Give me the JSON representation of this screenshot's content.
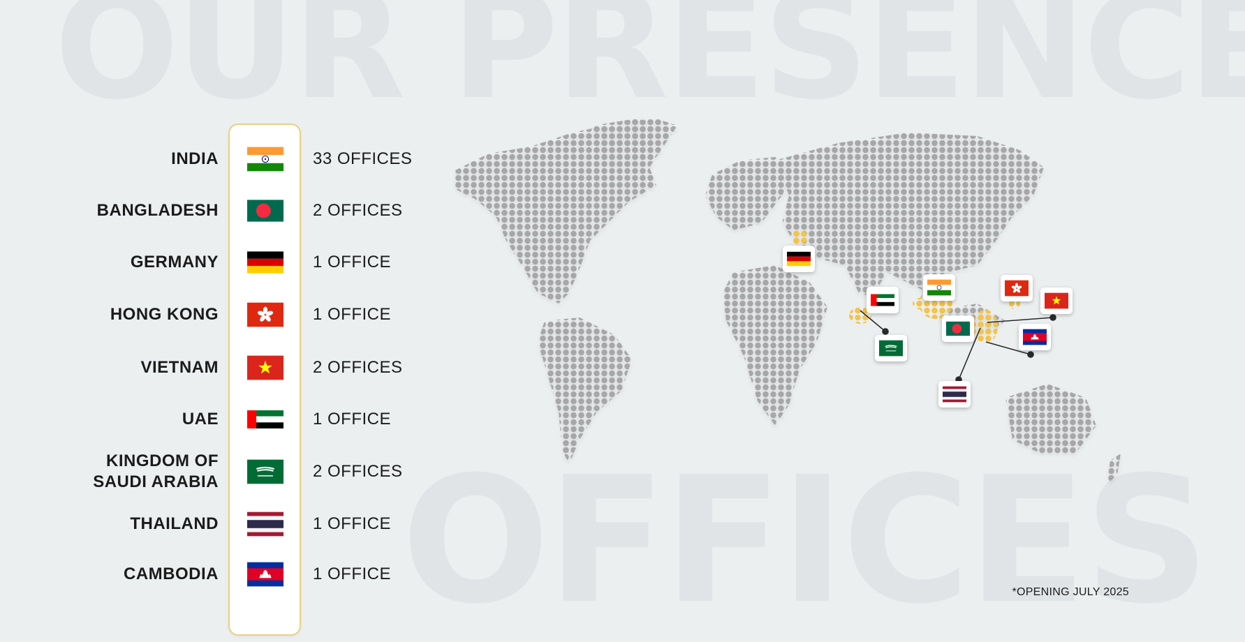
{
  "background": {
    "top_word": "OUR PRESENCE",
    "bottom_word": "OFFICES"
  },
  "colors": {
    "accent_border": "#e9cf86",
    "map_dots": "#a7a7a9",
    "highlight_dots": "#f2c44c"
  },
  "countries": [
    {
      "name": "INDIA",
      "offices": "33 OFFICES",
      "flag": "india-flag-icon"
    },
    {
      "name": "BANGLADESH",
      "offices": "2 OFFICES",
      "flag": "bangladesh-flag-icon"
    },
    {
      "name": "GERMANY",
      "offices": "1 OFFICE",
      "flag": "germany-flag-icon"
    },
    {
      "name": "HONG KONG",
      "offices": "1 OFFICE",
      "flag": "hong-kong-flag-icon"
    },
    {
      "name": "VIETNAM",
      "offices": "2 OFFICES",
      "flag": "vietnam-flag-icon"
    },
    {
      "name": "UAE",
      "offices": "1 OFFICE",
      "flag": "uae-flag-icon"
    },
    {
      "name": "KINGDOM OF SAUDI ARABIA",
      "name_line1": "KINGDOM OF",
      "name_line2": "SAUDI ARABIA",
      "offices": "2 OFFICES",
      "flag": "saudi-arabia-flag-icon"
    },
    {
      "name": "THAILAND",
      "offices": "1 OFFICE",
      "flag": "thailand-flag-icon"
    },
    {
      "name": "CAMBODIA",
      "offices": "1 OFFICE",
      "flag": "cambodia-flag-icon"
    }
  ],
  "footnote": "*OPENING JULY 2025"
}
